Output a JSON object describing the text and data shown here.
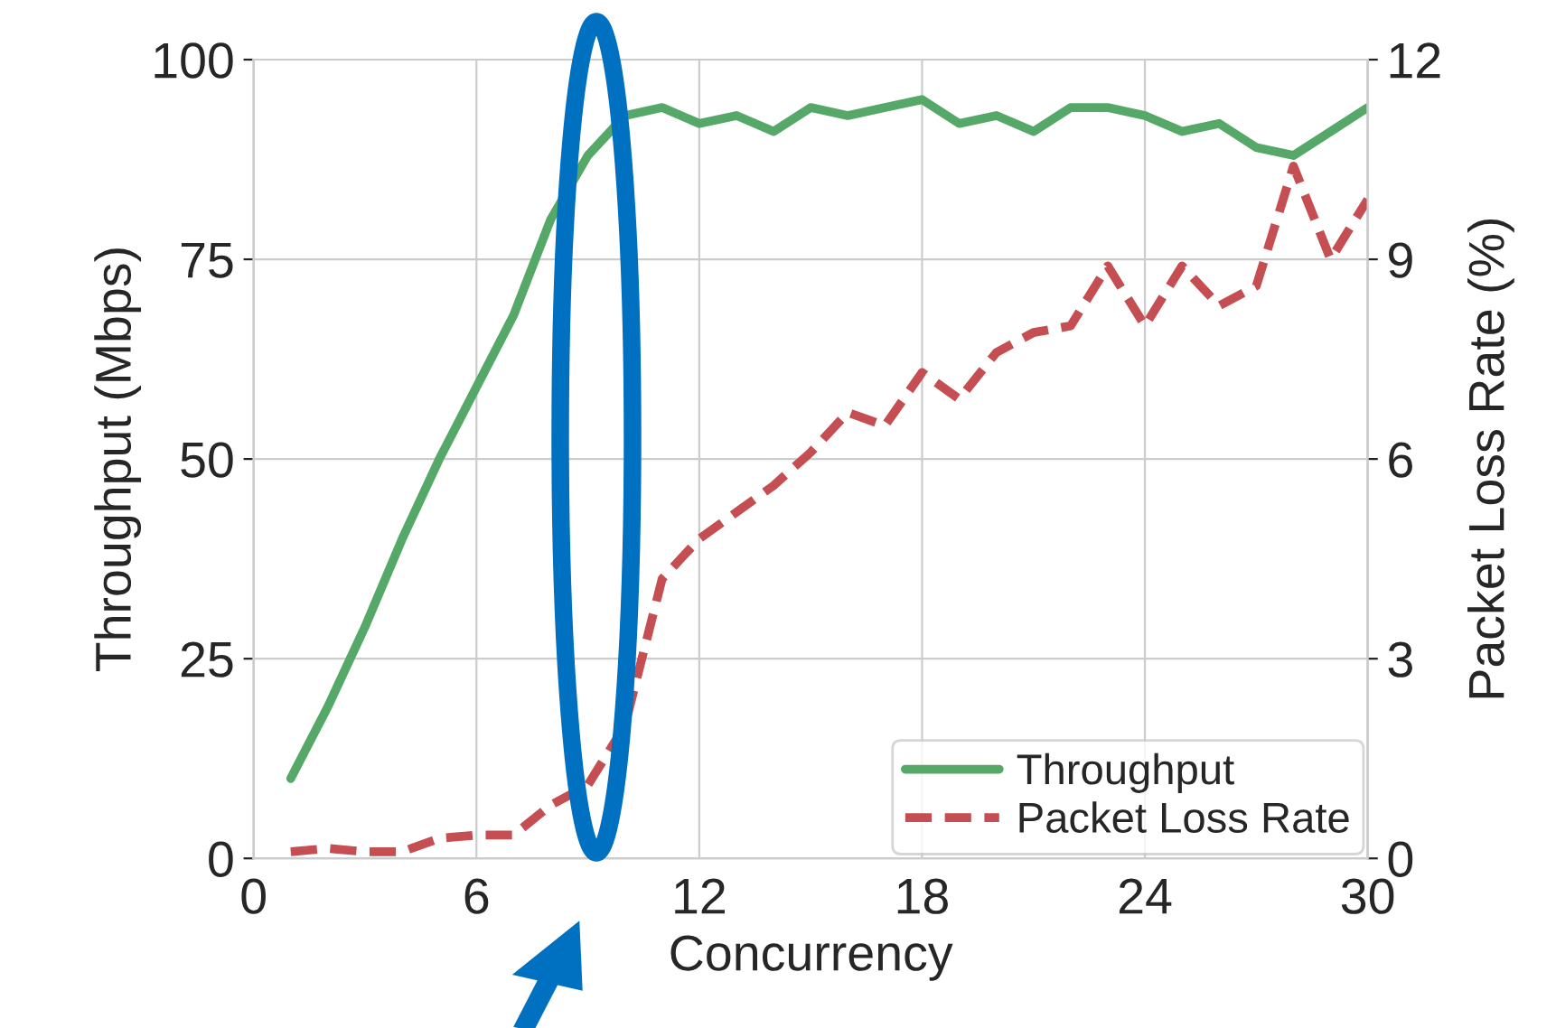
{
  "chart_data": {
    "type": "line",
    "xlabel": "Concurrency",
    "ylabel": "Throughput (Mbps)",
    "y2label": "Packet Loss Rate (%)",
    "x": [
      1,
      2,
      3,
      4,
      5,
      6,
      7,
      8,
      9,
      10,
      11,
      12,
      13,
      14,
      15,
      16,
      17,
      18,
      19,
      20,
      21,
      22,
      23,
      24,
      25,
      26,
      27,
      28,
      29,
      30
    ],
    "series": [
      {
        "name": "Throughput",
        "color": "#55a868",
        "line_style": "solid",
        "values": [
          10,
          19,
          29,
          40,
          50,
          59,
          68,
          80,
          88,
          93,
          94,
          92,
          93,
          91,
          94,
          93,
          94,
          95,
          92,
          93,
          91,
          94,
          94,
          93,
          91,
          92,
          89,
          88,
          91,
          94
        ]
      },
      {
        "name": "Packet Loss Rate",
        "color": "#c44e52",
        "line_style": "dashed",
        "axis": "y2",
        "values": [
          0.1,
          0.15,
          0.1,
          0.1,
          0.3,
          0.35,
          0.35,
          0.8,
          1.1,
          2.0,
          4.2,
          4.8,
          5.2,
          5.6,
          6.1,
          6.7,
          6.5,
          7.3,
          6.9,
          7.6,
          7.9,
          8.0,
          8.9,
          8.0,
          8.9,
          8.3,
          8.6,
          10.4,
          9.0,
          9.9
        ]
      }
    ],
    "xlim": [
      0,
      30
    ],
    "xticks": [
      0,
      6,
      12,
      18,
      24,
      30
    ],
    "ylim": [
      0,
      100
    ],
    "yticks": [
      0,
      25,
      50,
      75,
      100
    ],
    "y2lim": [
      0,
      12
    ],
    "y2ticks": [
      0,
      3,
      6,
      9,
      12
    ],
    "grid": true,
    "legend": "bottom right"
  }
}
